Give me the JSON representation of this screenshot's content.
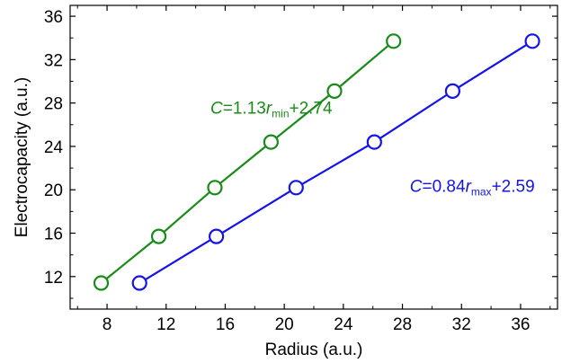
{
  "chart_data": {
    "type": "scatter",
    "xlabel": "Radius (a.u.)",
    "ylabel": "Electrocapacity (a.u.)",
    "xlim": [
      5.5,
      38.5
    ],
    "ylim": [
      9.0,
      37.0
    ],
    "x_ticks": [
      8,
      12,
      16,
      20,
      24,
      28,
      32,
      36
    ],
    "y_ticks": [
      12,
      16,
      20,
      24,
      28,
      32,
      36
    ],
    "grid": false,
    "marker": "open-circle",
    "series": [
      {
        "color": "#1a8a1a",
        "x": [
          7.6,
          11.5,
          15.3,
          19.1,
          23.4,
          27.4
        ],
        "y": [
          11.4,
          15.7,
          20.2,
          24.4,
          29.1,
          33.7
        ],
        "annotation": {
          "C": "C",
          "eq": "=1.13",
          "r": "r",
          "sub": "min",
          "tail": "+2.74",
          "x": 15.0,
          "y": 27.0
        }
      },
      {
        "color": "#1414e6",
        "x": [
          10.2,
          15.4,
          20.8,
          26.1,
          31.4,
          36.8
        ],
        "y": [
          11.4,
          15.7,
          20.2,
          24.4,
          29.1,
          33.7
        ],
        "annotation": {
          "C": "C",
          "eq": "=0.84",
          "r": "r",
          "sub": "max",
          "tail": "+2.59",
          "x": 28.5,
          "y": 19.8
        }
      }
    ]
  }
}
